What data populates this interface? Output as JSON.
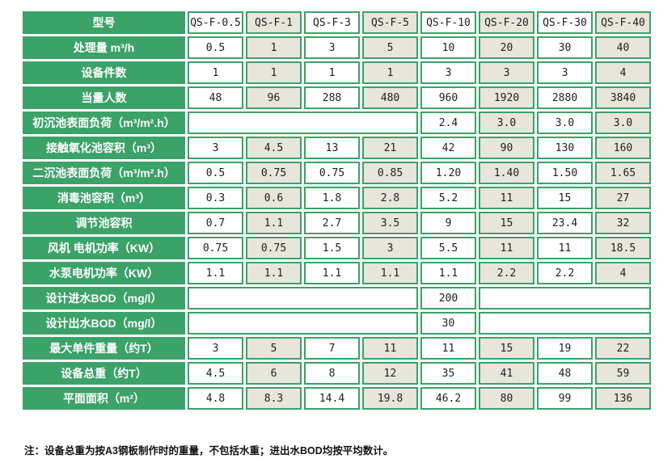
{
  "colors": {
    "green": "#3ba268",
    "beige": "#e8e5da",
    "text": "#1f1f1f"
  },
  "table": {
    "corner_label": "型号",
    "models": [
      "QS-F-0.5",
      "QS-F-1",
      "QS-F-3",
      "QS-F-5",
      "QS-F-10",
      "QS-F-20",
      "QS-F-30",
      "QS-F-40"
    ],
    "rows": [
      {
        "label": "处理量 m³/h",
        "values": [
          "0.5",
          "1",
          "3",
          "5",
          "10",
          "20",
          "30",
          "40"
        ]
      },
      {
        "label": "设备件数",
        "values": [
          "1",
          "1",
          "1",
          "1",
          "3",
          "3",
          "3",
          "4"
        ]
      },
      {
        "label": "当量人数",
        "values": [
          "48",
          "96",
          "288",
          "480",
          "960",
          "1920",
          "2880",
          "3840"
        ]
      },
      {
        "label": "初沉池表面负荷（m³/m².h）",
        "values": [
          "",
          "",
          "",
          "",
          "2.4",
          "3.0",
          "3.0",
          "3.0"
        ],
        "merge_empty": true
      },
      {
        "label": "接触氧化池容积（m³）",
        "values": [
          "3",
          "4.5",
          "13",
          "21",
          "42",
          "90",
          "130",
          "160"
        ]
      },
      {
        "label": "二沉池表面负荷（m³/m².h）",
        "values": [
          "0.5",
          "0.75",
          "0.75",
          "0.85",
          "1.20",
          "1.40",
          "1.50",
          "1.65"
        ]
      },
      {
        "label": "消毒池容积（m³）",
        "values": [
          "0.3",
          "0.6",
          "1.8",
          "2.8",
          "5.2",
          "11",
          "15",
          "27"
        ]
      },
      {
        "label": "调节池容积",
        "values": [
          "0.7",
          "1.1",
          "2.7",
          "3.5",
          "9",
          "15",
          "23.4",
          "32"
        ]
      },
      {
        "label": "风机 电机功率（KW）",
        "values": [
          "0.75",
          "0.75",
          "1.5",
          "3",
          "5.5",
          "11",
          "11",
          "18.5"
        ]
      },
      {
        "label": "水泵电机功率（KW）",
        "values": [
          "1.1",
          "1.1",
          "1.1",
          "1.1",
          "1.1",
          "2.2",
          "2.2",
          "4"
        ]
      },
      {
        "label": "设计进水BOD（mg/l）",
        "values": [
          "",
          "",
          "",
          "",
          "200",
          "",
          "",
          ""
        ],
        "merge_empty": true
      },
      {
        "label": "设计出水BOD（mg/l）",
        "values": [
          "",
          "",
          "",
          "",
          "30",
          "",
          "",
          ""
        ],
        "merge_empty": true
      },
      {
        "label": "最大单件重量（约T）",
        "values": [
          "3",
          "5",
          "7",
          "11",
          "11",
          "15",
          "19",
          "22"
        ]
      },
      {
        "label": "设备总重（约T）",
        "values": [
          "4.5",
          "6",
          "8",
          "12",
          "35",
          "41",
          "48",
          "59"
        ]
      },
      {
        "label": "平面面积（m²）",
        "values": [
          "4.8",
          "8.3",
          "14.4",
          "19.8",
          "46.2",
          "80",
          "99",
          "136"
        ]
      }
    ],
    "note": "注：设备总重为按A3钢板制作时的重量，不包括水重；进出水BOD均按平均数计。"
  }
}
